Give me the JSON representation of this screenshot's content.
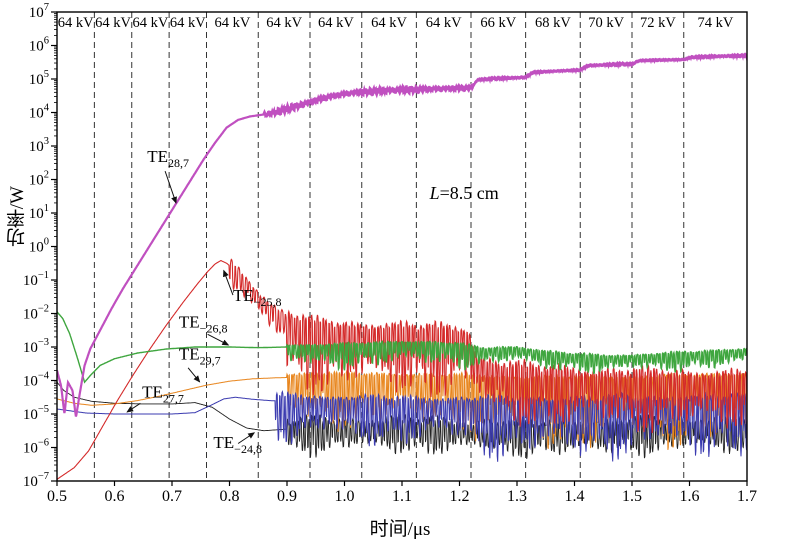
{
  "figure": {
    "xlabel": "时间/μs",
    "ylabel": "功率/W"
  },
  "chart_data": {
    "type": "line",
    "title": "",
    "xlabel": "时间/μs",
    "ylabel": "功率/W",
    "y_scale": "log10",
    "xlim": [
      0.5,
      1.7
    ],
    "ylim_exponents": [
      -7,
      7
    ],
    "x_ticks": [
      0.5,
      0.6,
      0.7,
      0.8,
      0.9,
      1.0,
      1.1,
      1.2,
      1.3,
      1.4,
      1.5,
      1.6,
      1.7
    ],
    "y_tick_exponents": [
      7,
      6,
      5,
      4,
      3,
      2,
      1,
      0,
      -1,
      -2,
      -3,
      -4,
      -5,
      -6,
      -7
    ],
    "grid": "vertical-dashed",
    "voltage_steps": {
      "dashed_boundaries": [
        0.565,
        0.63,
        0.695,
        0.76,
        0.85,
        0.94,
        1.03,
        1.125,
        1.22,
        1.315,
        1.41,
        1.5,
        1.59
      ],
      "segment_labels": [
        "64 kV",
        "64 kV",
        "64 kV",
        "64 kV",
        "64 kV",
        "64 kV",
        "64 kV",
        "64 kV",
        "64 kV",
        "66 kV",
        "68 kV",
        "70 kV",
        "72 kV",
        "74 kV"
      ]
    },
    "annotations": {
      "cavity_length": {
        "italic": "L",
        "rest": "=8.5 cm",
        "x": 1.148,
        "logy": 1.42
      },
      "modes": [
        {
          "main": "TE",
          "sub": "28,7",
          "text_x": 0.657,
          "text_logy": 2.52,
          "arrow": [
            0.688,
            2.25,
            0.707,
            1.3
          ]
        },
        {
          "main": "TE",
          "sub": "−25,8",
          "text_x": 0.806,
          "text_logy": -1.62,
          "arrow": [
            0.806,
            -1.45,
            0.79,
            -0.72
          ]
        },
        {
          "main": "TE",
          "sub": "−26,8",
          "text_x": 0.712,
          "text_logy": -2.42,
          "arrow": [
            0.762,
            -2.62,
            0.798,
            -2.94
          ]
        },
        {
          "main": "TE",
          "sub": "29,7",
          "text_x": 0.712,
          "text_logy": -3.38,
          "arrow": [
            0.728,
            -3.62,
            0.748,
            -4.04
          ]
        },
        {
          "main": "TE",
          "sub": "27,7",
          "text_x": 0.648,
          "text_logy": -4.5,
          "arrow": [
            0.645,
            -4.68,
            0.622,
            -4.94
          ]
        },
        {
          "main": "TE",
          "sub": "−24,8",
          "text_x": 0.772,
          "text_logy": -6.02,
          "arrow": [
            0.815,
            -5.88,
            0.843,
            -5.56
          ]
        }
      ]
    },
    "series": [
      {
        "name": "TE28,7",
        "color": "#c050c0",
        "lw": 2.2,
        "z": 6,
        "points_log10W": [
          [
            0.5,
            -3.7
          ],
          [
            0.507,
            -4.15
          ],
          [
            0.513,
            -5.0
          ],
          [
            0.519,
            -4.05
          ],
          [
            0.527,
            -4.3
          ],
          [
            0.533,
            -5.1
          ],
          [
            0.54,
            -4.35
          ],
          [
            0.548,
            -3.55
          ],
          [
            0.558,
            -3.05
          ],
          [
            0.575,
            -2.5
          ],
          [
            0.595,
            -1.85
          ],
          [
            0.615,
            -1.25
          ],
          [
            0.635,
            -0.7
          ],
          [
            0.655,
            -0.15
          ],
          [
            0.675,
            0.4
          ],
          [
            0.695,
            0.95
          ],
          [
            0.715,
            1.5
          ],
          [
            0.735,
            2.05
          ],
          [
            0.755,
            2.6
          ],
          [
            0.775,
            3.1
          ],
          [
            0.795,
            3.55
          ],
          [
            0.815,
            3.78
          ],
          [
            0.835,
            3.88
          ],
          [
            0.855,
            3.93
          ],
          [
            0.875,
            3.98
          ],
          [
            0.895,
            4.08
          ],
          [
            0.915,
            4.18
          ],
          [
            0.935,
            4.28
          ],
          [
            0.955,
            4.38
          ],
          [
            0.975,
            4.47
          ],
          [
            1.0,
            4.55
          ],
          [
            1.03,
            4.61
          ],
          [
            1.06,
            4.64
          ],
          [
            1.1,
            4.67
          ],
          [
            1.14,
            4.69
          ],
          [
            1.18,
            4.71
          ],
          [
            1.22,
            4.73
          ],
          [
            1.232,
            4.98
          ],
          [
            1.27,
            5.02
          ],
          [
            1.315,
            5.05
          ],
          [
            1.328,
            5.2
          ],
          [
            1.37,
            5.24
          ],
          [
            1.41,
            5.27
          ],
          [
            1.423,
            5.4
          ],
          [
            1.46,
            5.43
          ],
          [
            1.5,
            5.45
          ],
          [
            1.513,
            5.55
          ],
          [
            1.555,
            5.57
          ],
          [
            1.59,
            5.58
          ],
          [
            1.603,
            5.65
          ],
          [
            1.65,
            5.68
          ],
          [
            1.7,
            5.7
          ]
        ],
        "oscillation": [
          {
            "from": 0.86,
            "to": 1.225,
            "up": 0.13,
            "down": 0.13,
            "freq": 300
          },
          {
            "from": 1.225,
            "to": 1.7,
            "up": 0.05,
            "down": 0.05,
            "freq": 300
          }
        ]
      },
      {
        "name": "TE−25,8",
        "color": "#d42a2a",
        "lw": 1.1,
        "z": 4,
        "points_log10W": [
          [
            0.5,
            -6.95
          ],
          [
            0.53,
            -6.6
          ],
          [
            0.555,
            -6.1
          ],
          [
            0.58,
            -5.35
          ],
          [
            0.605,
            -4.6
          ],
          [
            0.63,
            -3.9
          ],
          [
            0.66,
            -3.1
          ],
          [
            0.69,
            -2.35
          ],
          [
            0.72,
            -1.65
          ],
          [
            0.745,
            -1.1
          ],
          [
            0.762,
            -0.75
          ],
          [
            0.775,
            -0.52
          ],
          [
            0.785,
            -0.42
          ],
          [
            0.795,
            -0.5
          ],
          [
            0.81,
            -0.72
          ],
          [
            0.83,
            -1.1
          ],
          [
            0.85,
            -1.5
          ],
          [
            0.87,
            -1.85
          ],
          [
            0.89,
            -2.1
          ],
          [
            0.92,
            -2.35
          ],
          [
            0.95,
            -2.48
          ],
          [
            1.0,
            -2.55
          ],
          [
            1.05,
            -2.58
          ],
          [
            1.1,
            -2.6
          ],
          [
            1.15,
            -2.63
          ],
          [
            1.2,
            -2.68
          ],
          [
            1.215,
            -2.75
          ],
          [
            1.23,
            -3.5
          ],
          [
            1.27,
            -3.75
          ],
          [
            1.32,
            -3.85
          ],
          [
            1.4,
            -3.95
          ],
          [
            1.5,
            -4.0
          ],
          [
            1.6,
            -4.05
          ],
          [
            1.7,
            -4.05
          ]
        ],
        "oscillation": [
          {
            "from": 0.8,
            "to": 0.9,
            "up": 0.3,
            "down": 0.8,
            "freq": 160
          },
          {
            "from": 0.9,
            "to": 1.22,
            "up": 0.45,
            "down": 2.1,
            "freq": 200
          },
          {
            "from": 1.22,
            "to": 1.7,
            "up": 0.5,
            "down": 1.7,
            "freq": 200
          }
        ]
      },
      {
        "name": "TE−26,8",
        "color": "#3fa63f",
        "lw": 1.4,
        "z": 5,
        "points_log10W": [
          [
            0.5,
            -1.95
          ],
          [
            0.51,
            -2.15
          ],
          [
            0.522,
            -2.6
          ],
          [
            0.535,
            -3.3
          ],
          [
            0.548,
            -4.05
          ],
          [
            0.558,
            -3.85
          ],
          [
            0.575,
            -3.55
          ],
          [
            0.6,
            -3.35
          ],
          [
            0.64,
            -3.18
          ],
          [
            0.69,
            -3.06
          ],
          [
            0.74,
            -3.0
          ],
          [
            0.8,
            -3.0
          ],
          [
            0.85,
            -3.02
          ],
          [
            0.9,
            -3.0
          ],
          [
            0.95,
            -3.0
          ],
          [
            1.0,
            -2.98
          ],
          [
            1.05,
            -2.94
          ],
          [
            1.1,
            -2.9
          ],
          [
            1.15,
            -2.92
          ],
          [
            1.2,
            -2.97
          ],
          [
            1.24,
            -3.1
          ],
          [
            1.3,
            -3.05
          ],
          [
            1.35,
            -3.2
          ],
          [
            1.4,
            -3.27
          ],
          [
            1.45,
            -3.32
          ],
          [
            1.5,
            -3.3
          ],
          [
            1.55,
            -3.26
          ],
          [
            1.6,
            -3.22
          ],
          [
            1.65,
            -3.17
          ],
          [
            1.7,
            -3.1
          ]
        ],
        "oscillation": [
          {
            "from": 0.9,
            "to": 1.22,
            "up": 0.12,
            "down": 0.75,
            "freq": 205
          },
          {
            "from": 1.22,
            "to": 1.7,
            "up": 0.12,
            "down": 0.55,
            "freq": 205
          }
        ]
      },
      {
        "name": "TE29,7",
        "color": "#e8861e",
        "lw": 1.0,
        "z": 2,
        "points_log10W": [
          [
            0.5,
            -4.55
          ],
          [
            0.53,
            -4.68
          ],
          [
            0.56,
            -4.74
          ],
          [
            0.6,
            -4.7
          ],
          [
            0.64,
            -4.6
          ],
          [
            0.68,
            -4.46
          ],
          [
            0.72,
            -4.3
          ],
          [
            0.76,
            -4.14
          ],
          [
            0.8,
            -4.02
          ],
          [
            0.84,
            -3.95
          ],
          [
            0.88,
            -3.92
          ],
          [
            0.92,
            -3.9
          ],
          [
            1.0,
            -3.9
          ],
          [
            1.1,
            -3.92
          ],
          [
            1.2,
            -3.95
          ],
          [
            1.3,
            -4.0
          ],
          [
            1.4,
            -4.0
          ],
          [
            1.5,
            -4.0
          ],
          [
            1.6,
            -3.95
          ],
          [
            1.7,
            -3.9
          ]
        ],
        "oscillation": [
          {
            "from": 0.9,
            "to": 1.22,
            "up": 0.2,
            "down": 1.7,
            "freq": 230
          },
          {
            "from": 1.22,
            "to": 1.7,
            "up": 0.2,
            "down": 2.3,
            "freq": 230
          }
        ]
      },
      {
        "name": "TE27,7",
        "color": "#3b3bb0",
        "lw": 1.0,
        "z": 3,
        "points_log10W": [
          [
            0.5,
            -4.85
          ],
          [
            0.55,
            -4.97
          ],
          [
            0.6,
            -5.0
          ],
          [
            0.65,
            -5.0
          ],
          [
            0.7,
            -5.0
          ],
          [
            0.74,
            -4.96
          ],
          [
            0.77,
            -4.72
          ],
          [
            0.79,
            -4.55
          ],
          [
            0.81,
            -4.5
          ],
          [
            0.84,
            -4.56
          ],
          [
            0.87,
            -4.6
          ],
          [
            0.9,
            -4.62
          ],
          [
            1.0,
            -4.66
          ],
          [
            1.1,
            -4.7
          ],
          [
            1.2,
            -4.7
          ],
          [
            1.3,
            -4.74
          ],
          [
            1.4,
            -4.74
          ],
          [
            1.5,
            -4.7
          ],
          [
            1.6,
            -4.7
          ],
          [
            1.7,
            -4.66
          ]
        ],
        "oscillation": [
          {
            "from": 0.88,
            "to": 1.22,
            "up": 0.3,
            "down": 1.4,
            "freq": 215
          },
          {
            "from": 1.22,
            "to": 1.7,
            "up": 0.35,
            "down": 1.8,
            "freq": 215
          }
        ]
      },
      {
        "name": "TE−24,8",
        "color": "#222222",
        "lw": 0.9,
        "z": 1,
        "points_log10W": [
          [
            0.5,
            -4.05
          ],
          [
            0.512,
            -4.3
          ],
          [
            0.53,
            -4.5
          ],
          [
            0.56,
            -4.62
          ],
          [
            0.6,
            -4.68
          ],
          [
            0.65,
            -4.7
          ],
          [
            0.7,
            -4.7
          ],
          [
            0.74,
            -4.66
          ],
          [
            0.77,
            -4.8
          ],
          [
            0.8,
            -5.15
          ],
          [
            0.83,
            -5.42
          ],
          [
            0.86,
            -5.5
          ],
          [
            0.9,
            -5.45
          ],
          [
            1.0,
            -5.42
          ],
          [
            1.1,
            -5.4
          ],
          [
            1.2,
            -5.45
          ],
          [
            1.3,
            -5.5
          ],
          [
            1.4,
            -5.5
          ],
          [
            1.5,
            -5.45
          ],
          [
            1.6,
            -5.42
          ],
          [
            1.7,
            -5.4
          ]
        ],
        "oscillation": [
          {
            "from": 0.9,
            "to": 1.7,
            "up": 0.45,
            "down": 0.9,
            "freq": 210
          }
        ]
      }
    ]
  }
}
